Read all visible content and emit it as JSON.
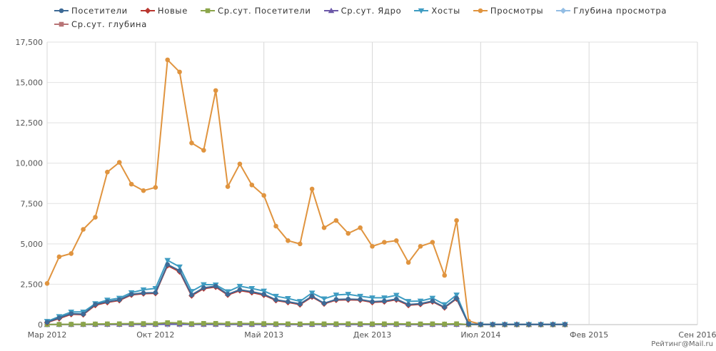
{
  "chart_data": {
    "type": "line",
    "title": "",
    "xlabel": "",
    "ylabel": "",
    "ylim": [
      0,
      17500
    ],
    "xlim": [
      "2012-03",
      "2016-09"
    ],
    "grid": true,
    "legend_position": "top",
    "x_tick_labels": [
      "Мар 2012",
      "Окт 2012",
      "Май 2013",
      "Дек 2013",
      "Июл 2014",
      "Фев 2015",
      "Сен 2016"
    ],
    "y_tick_labels": [
      "0",
      "2,500",
      "5,000",
      "7,500",
      "10,000",
      "12,500",
      "15,000",
      "17,500"
    ],
    "x": [
      "2012-03",
      "2012-04",
      "2012-05",
      "2012-06",
      "2012-07",
      "2012-08",
      "2012-09",
      "2012-10",
      "2012-11",
      "2012-12",
      "2013-01",
      "2013-02",
      "2013-03",
      "2013-04",
      "2013-05",
      "2013-06",
      "2013-07",
      "2013-08",
      "2013-09",
      "2013-10",
      "2013-11",
      "2013-12",
      "2014-01",
      "2014-02",
      "2014-03",
      "2014-04",
      "2014-05",
      "2014-06",
      "2014-07",
      "2014-08",
      "2014-09",
      "2014-10",
      "2014-11",
      "2014-12",
      "2015-01",
      "2015-02",
      "2015-03",
      "2015-04",
      "2015-05",
      "2015-06",
      "2015-07",
      "2015-08",
      "2015-09",
      "2015-10"
    ],
    "series": [
      {
        "name": "Посетители",
        "color": "#3d6a96",
        "marker": "circle",
        "values": [
          150,
          420,
          680,
          650,
          1250,
          1420,
          1540,
          1880,
          1960,
          1980,
          3720,
          3340,
          1840,
          2280,
          2380,
          1880,
          2160,
          2040,
          1880,
          1540,
          1420,
          1280,
          1760,
          1320,
          1560,
          1580,
          1560,
          1420,
          1460,
          1580,
          1240,
          1300,
          1460,
          1080,
          1640,
          30,
          10,
          10,
          10,
          10,
          10,
          10,
          10,
          10
        ]
      },
      {
        "name": "Новые",
        "color": "#b9362f",
        "marker": "diamond",
        "values": [
          130,
          380,
          640,
          620,
          1200,
          1380,
          1500,
          1840,
          1920,
          1940,
          3660,
          3280,
          1790,
          2230,
          2330,
          1840,
          2110,
          1990,
          1830,
          1500,
          1380,
          1240,
          1720,
          1290,
          1520,
          1540,
          1520,
          1380,
          1420,
          1540,
          1200,
          1260,
          1420,
          1050,
          1600,
          25,
          10,
          10,
          10,
          10,
          10,
          10,
          10,
          10
        ]
      },
      {
        "name": "Ср.сут. Посетители",
        "color": "#8ba54a",
        "marker": "square",
        "values": [
          5,
          14,
          22,
          21,
          40,
          46,
          51,
          61,
          65,
          64,
          120,
          108,
          59,
          76,
          77,
          61,
          72,
          66,
          62,
          50,
          47,
          42,
          57,
          47,
          50,
          53,
          51,
          46,
          48,
          51,
          41,
          42,
          48,
          35,
          53,
          1,
          0,
          0,
          0,
          0,
          0,
          0,
          0,
          0
        ]
      },
      {
        "name": "Ср.сут. Ядро",
        "color": "#6c58a8",
        "marker": "triangle",
        "values": [
          2,
          5,
          8,
          8,
          15,
          17,
          19,
          22,
          24,
          24,
          44,
          40,
          22,
          28,
          28,
          22,
          26,
          24,
          23,
          18,
          17,
          15,
          21,
          17,
          18,
          19,
          19,
          17,
          18,
          19,
          15,
          15,
          18,
          13,
          20,
          0,
          0,
          0,
          0,
          0,
          0,
          0,
          0,
          0
        ]
      },
      {
        "name": "Хосты",
        "color": "#3e9cc2",
        "marker": "triangle-down",
        "values": [
          200,
          500,
          780,
          780,
          1300,
          1520,
          1640,
          1980,
          2160,
          2240,
          3980,
          3580,
          2060,
          2480,
          2460,
          2040,
          2380,
          2240,
          2080,
          1760,
          1620,
          1440,
          1960,
          1600,
          1840,
          1880,
          1760,
          1660,
          1660,
          1820,
          1440,
          1460,
          1640,
          1240,
          1840,
          35,
          10,
          10,
          10,
          10,
          10,
          10,
          10,
          10
        ]
      },
      {
        "name": "Просмотры",
        "color": "#e0943f",
        "marker": "circle",
        "values": [
          2550,
          4200,
          4400,
          5900,
          6650,
          9450,
          10050,
          8700,
          8300,
          8500,
          16400,
          15650,
          11250,
          10800,
          14500,
          8550,
          9950,
          8650,
          8000,
          6100,
          5200,
          5000,
          8400,
          6000,
          6450,
          5650,
          6000,
          4850,
          5100,
          5200,
          3850,
          4850,
          5100,
          3050,
          6450,
          220,
          20,
          15,
          15,
          10,
          10,
          10,
          10,
          10
        ]
      },
      {
        "name": "Глубина просмотра",
        "color": "#93bde4",
        "marker": "diamond",
        "values": [
          10,
          10,
          6,
          9,
          5,
          7,
          7,
          5,
          4,
          4,
          4,
          5,
          6,
          5,
          6,
          5,
          5,
          4,
          4,
          4,
          4,
          4,
          5,
          5,
          4,
          4,
          4,
          4,
          4,
          3,
          3,
          4,
          3,
          3,
          4,
          7,
          2,
          2,
          2,
          2,
          2,
          2,
          2,
          2
        ]
      },
      {
        "name": "Ср.сут. глубина",
        "color": "#b87476",
        "marker": "square",
        "values": [
          10,
          10,
          6,
          9,
          5,
          7,
          7,
          5,
          4,
          4,
          4,
          5,
          6,
          5,
          6,
          5,
          5,
          4,
          4,
          4,
          4,
          4,
          5,
          5,
          4,
          4,
          4,
          4,
          4,
          3,
          3,
          4,
          3,
          3,
          4,
          7,
          2,
          2,
          2,
          2,
          2,
          2,
          2,
          2
        ]
      }
    ]
  },
  "footer": {
    "credit": "Рейтинг@Mail.ru"
  }
}
